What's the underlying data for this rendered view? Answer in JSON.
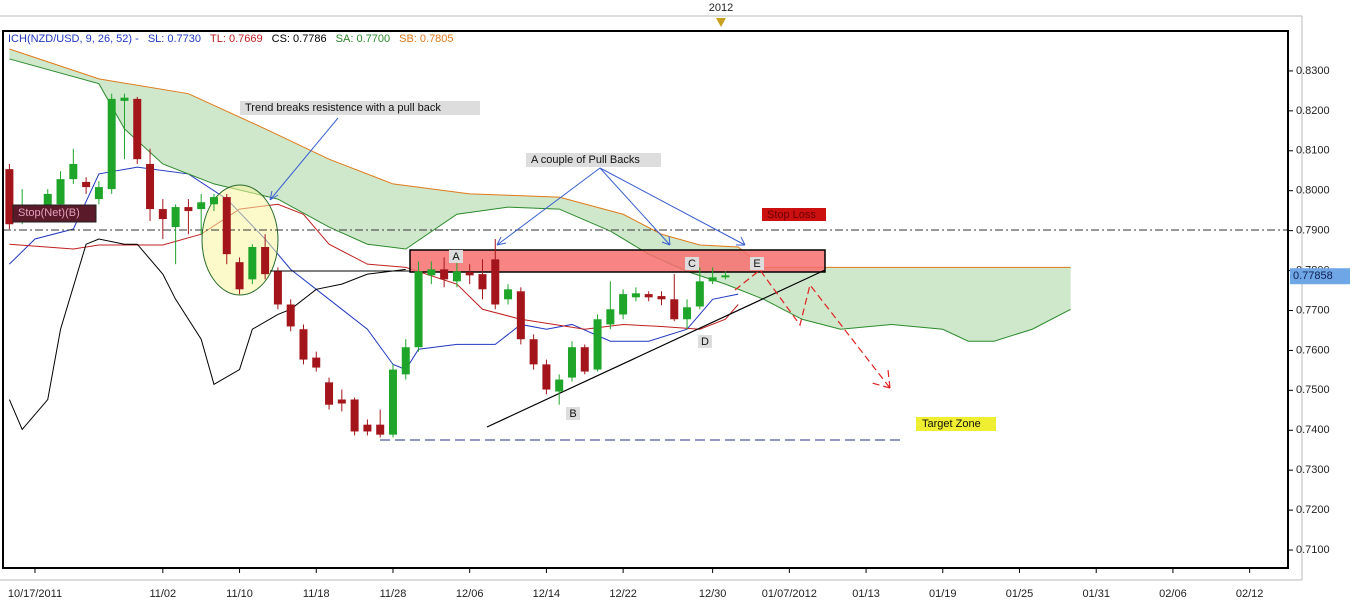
{
  "chart_data": {
    "type": "candlestick",
    "top_label": "2012",
    "indicator": "ICH(NZD/USD, 9, 26, 52) -",
    "xlim": [
      -0.5,
      100
    ],
    "xticks": [
      {
        "value": 2,
        "label": "10/17/2011"
      },
      {
        "value": 12,
        "label": "11/02"
      },
      {
        "value": 18,
        "label": "11/10"
      },
      {
        "value": 24,
        "label": "11/18"
      },
      {
        "value": 30,
        "label": "11/28"
      },
      {
        "value": 36,
        "label": "12/06"
      },
      {
        "value": 42,
        "label": "12/14"
      },
      {
        "value": 48,
        "label": "12/22"
      },
      {
        "value": 55,
        "label": "12/30"
      },
      {
        "value": 61,
        "label": "01/07/2012"
      },
      {
        "value": 67,
        "label": "01/13"
      },
      {
        "value": 73,
        "label": "01/19"
      },
      {
        "value": 79,
        "label": "01/25"
      },
      {
        "value": 85,
        "label": "01/31"
      },
      {
        "value": 91,
        "label": "02/06"
      },
      {
        "value": 97,
        "label": "02/12"
      }
    ],
    "ylim": [
      0.7055,
      0.84
    ],
    "yticks": [
      {
        "value": 0.71,
        "label": "0.7100"
      },
      {
        "value": 0.72,
        "label": "0.7200"
      },
      {
        "value": 0.73,
        "label": "0.7300"
      },
      {
        "value": 0.74,
        "label": "0.7400"
      },
      {
        "value": 0.75,
        "label": "0.7500"
      },
      {
        "value": 0.76,
        "label": "0.7600"
      },
      {
        "value": 0.77,
        "label": "0.7700"
      },
      {
        "value": 0.78,
        "label": "0.7800"
      },
      {
        "value": 0.79,
        "label": "0.7900"
      },
      {
        "value": 0.8,
        "label": "0.8000"
      },
      {
        "value": 0.81,
        "label": "0.8100"
      },
      {
        "value": 0.82,
        "label": "0.8200"
      },
      {
        "value": 0.83,
        "label": "0.8300"
      }
    ],
    "last_price": 0.77858,
    "up_color": "#1fa52a",
    "down_color": "#a3151a",
    "cloud_color": "#cfe8cc",
    "candles": {
      "x": [
        0,
        1,
        2,
        3,
        4,
        5,
        6,
        7,
        8,
        9,
        10,
        11,
        12,
        13,
        14,
        15,
        16,
        17,
        18,
        19,
        20,
        21,
        22,
        23,
        24,
        25,
        26,
        27,
        28,
        29,
        30,
        31,
        32,
        33,
        34,
        35,
        36,
        37,
        38,
        39,
        40,
        41,
        42,
        43,
        44,
        45,
        46,
        47,
        48,
        49,
        50,
        51,
        52,
        53,
        54,
        55,
        56
      ],
      "open": [
        0.8054,
        0.7929,
        0.7941,
        0.7954,
        0.7966,
        0.8029,
        0.8022,
        0.7979,
        0.8004,
        0.8225,
        0.823,
        0.8067,
        0.7954,
        0.7909,
        0.7959,
        0.7954,
        0.7966,
        0.7984,
        0.7821,
        0.7778,
        0.7859,
        0.7798,
        0.7715,
        0.7653,
        0.7582,
        0.752,
        0.7477,
        0.7477,
        0.7414,
        0.7414,
        0.7389,
        0.754,
        0.7608,
        0.7788,
        0.7803,
        0.7773,
        0.7796,
        0.7791,
        0.7828,
        0.7728,
        0.7748,
        0.7628,
        0.7565,
        0.7497,
        0.7532,
        0.7608,
        0.7552,
        0.7665,
        0.769,
        0.7733,
        0.7741,
        0.7736,
        0.7728,
        0.7678,
        0.771,
        0.7773,
        0.7783
      ],
      "high": [
        0.8067,
        0.8004,
        0.7966,
        0.8004,
        0.8049,
        0.8105,
        0.8034,
        0.8024,
        0.8243,
        0.8243,
        0.8235,
        0.8105,
        0.7979,
        0.7966,
        0.7979,
        0.7992,
        0.7992,
        0.7992,
        0.7833,
        0.7866,
        0.7891,
        0.7808,
        0.7728,
        0.7665,
        0.7597,
        0.7532,
        0.7502,
        0.7482,
        0.7427,
        0.7452,
        0.7565,
        0.7628,
        0.7823,
        0.7823,
        0.7833,
        0.7823,
        0.7816,
        0.7828,
        0.7879,
        0.7766,
        0.7758,
        0.764,
        0.7577,
        0.754,
        0.7623,
        0.7615,
        0.769,
        0.7773,
        0.7753,
        0.7758,
        0.7748,
        0.7748,
        0.7791,
        0.7728,
        0.7808,
        0.7808,
        0.7798
      ],
      "low": [
        0.7904,
        0.7916,
        0.7924,
        0.7934,
        0.7954,
        0.8017,
        0.7992,
        0.7966,
        0.7992,
        0.8079,
        0.8067,
        0.7924,
        0.7879,
        0.7816,
        0.7891,
        0.7891,
        0.7949,
        0.7816,
        0.7741,
        0.7766,
        0.7778,
        0.7703,
        0.7648,
        0.7565,
        0.7547,
        0.7452,
        0.7447,
        0.7387,
        0.7387,
        0.7382,
        0.7382,
        0.7527,
        0.7597,
        0.7766,
        0.7758,
        0.7758,
        0.7766,
        0.7728,
        0.7703,
        0.7715,
        0.7615,
        0.7552,
        0.749,
        0.7464,
        0.7522,
        0.754,
        0.7547,
        0.7653,
        0.7678,
        0.7723,
        0.7723,
        0.7713,
        0.7673,
        0.7653,
        0.7703,
        0.7766,
        0.7778
      ],
      "close": [
        0.7916,
        0.7959,
        0.7954,
        0.7992,
        0.8029,
        0.8067,
        0.8009,
        0.8009,
        0.823,
        0.8233,
        0.8079,
        0.7954,
        0.7929,
        0.7959,
        0.7949,
        0.7971,
        0.7984,
        0.7841,
        0.7753,
        0.7859,
        0.7791,
        0.7715,
        0.766,
        0.7577,
        0.7557,
        0.7464,
        0.7467,
        0.7397,
        0.7397,
        0.7389,
        0.7552,
        0.7608,
        0.7798,
        0.7803,
        0.7778,
        0.7798,
        0.7788,
        0.7753,
        0.7715,
        0.7753,
        0.7628,
        0.7565,
        0.7502,
        0.7527,
        0.7608,
        0.7547,
        0.7678,
        0.7703,
        0.7741,
        0.7743,
        0.7733,
        0.7728,
        0.7678,
        0.7708,
        0.7773,
        0.7783,
        0.7788
      ]
    },
    "series": [
      {
        "name": "SL: 0.7730",
        "color": "#2038c0",
        "x": [
          0,
          2,
          5,
          7,
          10,
          14,
          17,
          20,
          22,
          25,
          28,
          30,
          31,
          32,
          35,
          38,
          40,
          42,
          44,
          47,
          50,
          53,
          55,
          57
        ],
        "values": [
          0.7816,
          0.7879,
          0.7904,
          0.8042,
          0.8059,
          0.8042,
          0.7979,
          0.7879,
          0.7803,
          0.7728,
          0.7653,
          0.7565,
          0.7552,
          0.7603,
          0.7615,
          0.7615,
          0.7665,
          0.7653,
          0.7665,
          0.7623,
          0.7623,
          0.7653,
          0.7728,
          0.7741
        ]
      },
      {
        "name": "TL: 0.7669",
        "color": "#c02020",
        "x": [
          0,
          5,
          7,
          12,
          15,
          18,
          21,
          23,
          25,
          28,
          31,
          35,
          37,
          40,
          45,
          48,
          51,
          54,
          56,
          57
        ],
        "values": [
          0.7866,
          0.7854,
          0.7864,
          0.7864,
          0.7891,
          0.7954,
          0.7966,
          0.7941,
          0.7866,
          0.7816,
          0.7808,
          0.7766,
          0.7703,
          0.7678,
          0.7653,
          0.7665,
          0.766,
          0.7653,
          0.7678,
          0.7715
        ]
      },
      {
        "name": "CS: 0.7786",
        "color": "#000000",
        "x": [
          0,
          1,
          3,
          4,
          6,
          7,
          9,
          10,
          12,
          13,
          15,
          16,
          18,
          19,
          21,
          22,
          24,
          26,
          28,
          31
        ],
        "values": [
          0.7477,
          0.7402,
          0.7477,
          0.7653,
          0.7866,
          0.7879,
          0.7866,
          0.7866,
          0.7791,
          0.7728,
          0.7628,
          0.7515,
          0.7552,
          0.7653,
          0.769,
          0.7703,
          0.7753,
          0.7766,
          0.7791,
          0.7803
        ]
      },
      {
        "name": "SA: 0.7700",
        "color": "#2c8a2c",
        "x": [
          0,
          7,
          9,
          12,
          16,
          21,
          25,
          28,
          31,
          35,
          39,
          43,
          47,
          50,
          53,
          56,
          59,
          62,
          65,
          69,
          73,
          75,
          77,
          80,
          83
        ],
        "values": [
          0.833,
          0.8268,
          0.8155,
          0.8067,
          0.8017,
          0.7979,
          0.7909,
          0.7866,
          0.7854,
          0.7941,
          0.7959,
          0.7954,
          0.7899,
          0.7841,
          0.7798,
          0.7766,
          0.7728,
          0.7678,
          0.7653,
          0.7665,
          0.7653,
          0.7623,
          0.7623,
          0.7653,
          0.7703
        ]
      },
      {
        "name": "SB: 0.7805",
        "color": "#e07a1a",
        "x": [
          0,
          7,
          14,
          20,
          25,
          30,
          36,
          43,
          48,
          51,
          54,
          57,
          59,
          83
        ],
        "values": [
          0.8355,
          0.828,
          0.8243,
          0.8155,
          0.8079,
          0.8017,
          0.7992,
          0.7984,
          0.7941,
          0.7891,
          0.7864,
          0.7859,
          0.7808,
          0.7808
        ]
      }
    ],
    "annotations": {
      "trend": "Trend breaks resistence with a pull back",
      "pullbacks": "A couple of Pull Backs",
      "stop_loss": "Stop Loss",
      "stop_net": "Stop(Net)(B)",
      "target": "Target Zone",
      "points": [
        "A",
        "B",
        "C",
        "D",
        "E"
      ]
    }
  }
}
